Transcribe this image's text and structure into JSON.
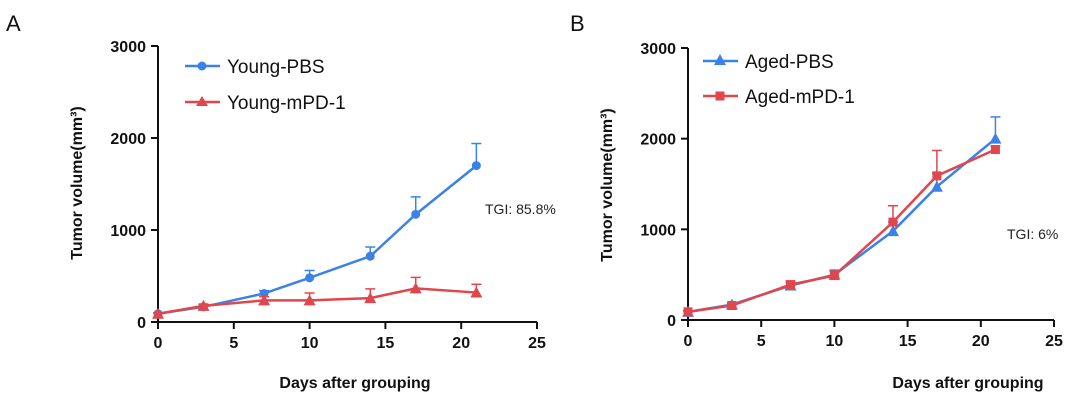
{
  "chart_data": [
    {
      "panel": "A",
      "type": "line",
      "xlabel": "Days after grouping",
      "ylabel": "Tumor volume(mm³)",
      "xlim": [
        0,
        25
      ],
      "ylim": [
        0,
        3000
      ],
      "xticks": [
        0,
        5,
        10,
        15,
        20,
        25
      ],
      "yticks": [
        0,
        1000,
        2000,
        3000
      ],
      "grid": false,
      "legend_position": "top-left",
      "annotation": "TGI: 85.8%",
      "series": [
        {
          "name": "Young-PBS",
          "color": "#3b82e8",
          "marker": "circle",
          "x": [
            0,
            3,
            7,
            10,
            14,
            17,
            21
          ],
          "y": [
            90,
            165,
            310,
            480,
            715,
            1170,
            1700
          ],
          "err": [
            10,
            20,
            30,
            80,
            100,
            190,
            240
          ]
        },
        {
          "name": "Young-mPD-1",
          "color": "#e0474c",
          "marker": "triangle",
          "x": [
            0,
            3,
            7,
            10,
            14,
            17,
            21
          ],
          "y": [
            90,
            175,
            235,
            235,
            260,
            365,
            320
          ],
          "err": [
            10,
            20,
            40,
            80,
            100,
            120,
            90
          ]
        }
      ]
    },
    {
      "panel": "B",
      "type": "line",
      "xlabel": "Days after grouping",
      "ylabel": "Tumor volume(mm³)",
      "xlim": [
        0,
        25
      ],
      "ylim": [
        0,
        3000
      ],
      "xticks": [
        0,
        5,
        10,
        15,
        20,
        25
      ],
      "yticks": [
        0,
        1000,
        2000,
        3000
      ],
      "grid": false,
      "legend_position": "top-left",
      "annotation": "TGI: 6%",
      "series": [
        {
          "name": "Aged-PBS",
          "color": "#3b82e8",
          "marker": "triangle",
          "x": [
            0,
            3,
            7,
            10,
            14,
            17,
            21
          ],
          "y": [
            90,
            170,
            380,
            500,
            980,
            1470,
            2000
          ],
          "err": [
            10,
            20,
            30,
            50,
            100,
            150,
            240
          ]
        },
        {
          "name": "Aged-mPD-1",
          "color": "#e0474c",
          "marker": "square",
          "x": [
            0,
            3,
            7,
            10,
            14,
            17,
            21
          ],
          "y": [
            90,
            160,
            390,
            490,
            1080,
            1590,
            1880
          ],
          "err": [
            10,
            20,
            40,
            50,
            180,
            280,
            40
          ]
        }
      ]
    }
  ]
}
